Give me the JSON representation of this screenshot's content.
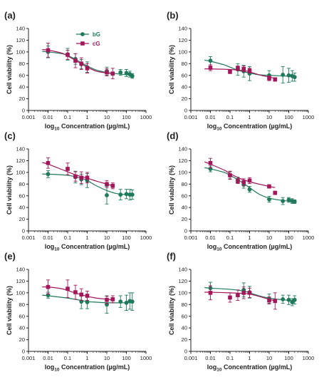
{
  "figure": {
    "series_colors": {
      "bG": "#1f7a5a",
      "cG": "#a3175a"
    },
    "legend": [
      {
        "name": "bG",
        "color": "#1f7a5a",
        "marker": "circle"
      },
      {
        "name": "cG",
        "color": "#a3175a",
        "marker": "square"
      }
    ]
  },
  "chart_data": [
    {
      "panel": "(a)",
      "type": "scatter",
      "xlabel_prefix": "log",
      "xlabel_sub": "10",
      "xlabel_rest": " Concentration (µg/mL)",
      "ylabel": "Cell viability (%)",
      "xscale": "log",
      "xlim": [
        0.001,
        1000
      ],
      "ylim": [
        0,
        140
      ],
      "xticks": [
        "0.001",
        "0.01",
        "0.1",
        "1",
        "10",
        "100",
        "1000"
      ],
      "yticks": [
        "0",
        "20",
        "40",
        "60",
        "80",
        "100",
        "120",
        "140"
      ],
      "legend_position": "top-center",
      "series": [
        {
          "name": "bG",
          "x": [
            0.01,
            0.1,
            0.25,
            0.5,
            1,
            10,
            50,
            100,
            150,
            200
          ],
          "y": [
            100,
            96,
            88,
            79,
            74,
            67,
            65,
            64,
            62,
            59
          ],
          "err": [
            10,
            10,
            9,
            8,
            9,
            7,
            5,
            6,
            5,
            4
          ],
          "fit": [
            [
              0.005,
              101
            ],
            [
              0.01,
              100
            ],
            [
              0.05,
              97
            ],
            [
              0.1,
              94
            ],
            [
              0.3,
              86
            ],
            [
              1,
              76
            ],
            [
              3,
              69
            ],
            [
              10,
              65
            ],
            [
              50,
              62
            ],
            [
              200,
              60
            ]
          ]
        },
        {
          "name": "cG",
          "x": [
            0.01,
            0.1,
            0.25,
            0.5,
            1,
            10,
            20
          ],
          "y": [
            103,
            95,
            85,
            80,
            72,
            65,
            63
          ],
          "err": [
            12,
            8,
            12,
            10,
            8,
            6,
            9
          ],
          "fit": [
            [
              0.005,
              104
            ],
            [
              0.01,
              103
            ],
            [
              0.05,
              98
            ],
            [
              0.1,
              93
            ],
            [
              0.3,
              84
            ],
            [
              1,
              74
            ],
            [
              3,
              67
            ],
            [
              10,
              64
            ],
            [
              20,
              63
            ]
          ]
        }
      ]
    },
    {
      "panel": "(b)",
      "type": "scatter",
      "xlabel_prefix": "log",
      "xlabel_sub": "10",
      "xlabel_rest": " Concentration (µg/mL)",
      "ylabel": "Cell viability (%)",
      "xscale": "log",
      "xlim": [
        0.001,
        1000
      ],
      "ylim": [
        0,
        140
      ],
      "xticks": [
        "0.001",
        "0.01",
        "0.1",
        "1",
        "10",
        "100",
        "1000"
      ],
      "yticks": [
        "0",
        "20",
        "40",
        "60",
        "80",
        "100",
        "120",
        "140"
      ],
      "series": [
        {
          "name": "bG",
          "x": [
            0.01,
            0.25,
            0.5,
            1,
            10,
            50,
            100,
            150,
            200
          ],
          "y": [
            85,
            70,
            67,
            63,
            60,
            61,
            60,
            59,
            57
          ],
          "err": [
            7,
            10,
            10,
            12,
            8,
            14,
            12,
            9,
            7
          ],
          "fit": [
            [
              0.005,
              86
            ],
            [
              0.01,
              84
            ],
            [
              0.05,
              78
            ],
            [
              0.1,
              74
            ],
            [
              0.3,
              68
            ],
            [
              1,
              64
            ],
            [
              3,
              61
            ],
            [
              10,
              60
            ],
            [
              50,
              59
            ],
            [
              200,
              58
            ]
          ]
        },
        {
          "name": "cG",
          "x": [
            0.01,
            0.1,
            0.25,
            0.5,
            1,
            10,
            20
          ],
          "y": [
            73,
            66,
            72,
            71,
            68,
            55,
            53
          ],
          "err": [
            5,
            3,
            4,
            5,
            4,
            4,
            3
          ],
          "fit": [
            [
              0.005,
              71
            ],
            [
              0.01,
              71
            ],
            [
              0.1,
              70
            ],
            [
              0.5,
              68
            ],
            [
              1,
              66
            ],
            [
              3,
              61
            ],
            [
              10,
              57
            ],
            [
              20,
              55
            ]
          ]
        }
      ]
    },
    {
      "panel": "(c)",
      "type": "scatter",
      "xlabel_prefix": "log",
      "xlabel_sub": "10",
      "xlabel_rest": " Concentration (µg/mL)",
      "ylabel": "Cell viability (%)",
      "xscale": "log",
      "xlim": [
        0.001,
        1000
      ],
      "ylim": [
        0,
        140
      ],
      "xticks": [
        "0.001",
        "0.01",
        "0.1",
        "1",
        "10",
        "100",
        "1000"
      ],
      "yticks": [
        "0",
        "20",
        "40",
        "60",
        "80",
        "100",
        "120",
        "140"
      ],
      "series": [
        {
          "name": "bG",
          "x": [
            0.01,
            0.25,
            0.5,
            1,
            10,
            50,
            100,
            150,
            200
          ],
          "y": [
            97,
            92,
            88,
            86,
            61,
            62,
            63,
            62,
            62
          ],
          "err": [
            6,
            10,
            9,
            12,
            15,
            9,
            8,
            9,
            8
          ],
          "fit": [
            [
              0.005,
              97
            ],
            [
              0.01,
              97
            ],
            [
              0.1,
              95
            ],
            [
              0.5,
              90
            ],
            [
              1,
              86
            ],
            [
              3,
              77
            ],
            [
              10,
              69
            ],
            [
              30,
              64
            ],
            [
              100,
              62
            ],
            [
              200,
              62
            ]
          ]
        },
        {
          "name": "cG",
          "x": [
            0.01,
            0.1,
            0.25,
            0.5,
            1,
            10,
            20
          ],
          "y": [
            116,
            106,
            93,
            91,
            91,
            80,
            77
          ],
          "err": [
            9,
            10,
            8,
            10,
            9,
            6,
            5
          ],
          "fit": [
            [
              0.005,
              117
            ],
            [
              0.01,
              114
            ],
            [
              0.05,
              105
            ],
            [
              0.1,
              101
            ],
            [
              0.3,
              95
            ],
            [
              1,
              90
            ],
            [
              3,
              85
            ],
            [
              10,
              80
            ],
            [
              20,
              77
            ]
          ]
        }
      ]
    },
    {
      "panel": "(d)",
      "type": "scatter",
      "xlabel_prefix": "log",
      "xlabel_sub": "10",
      "xlabel_rest": " Concentration (µg/mL)",
      "ylabel": "Cell viability (%)",
      "xscale": "log",
      "xlim": [
        0.001,
        1000
      ],
      "ylim": [
        0,
        140
      ],
      "xticks": [
        "0.001",
        "0.01",
        "0.1",
        "1",
        "10",
        "100",
        "1000"
      ],
      "yticks": [
        "0",
        "20",
        "40",
        "60",
        "80",
        "100",
        "120",
        "140"
      ],
      "series": [
        {
          "name": "bG",
          "x": [
            0.01,
            0.1,
            0.25,
            0.5,
            1,
            10,
            50,
            100,
            150,
            200
          ],
          "y": [
            106,
            95,
            87,
            79,
            71,
            54,
            51,
            53,
            51,
            50
          ],
          "err": [
            5,
            6,
            5,
            6,
            5,
            5,
            6,
            4,
            4,
            3
          ],
          "fit": [
            [
              0.005,
              108
            ],
            [
              0.01,
              106
            ],
            [
              0.05,
              100
            ],
            [
              0.1,
              95
            ],
            [
              0.3,
              86
            ],
            [
              1,
              74
            ],
            [
              3,
              63
            ],
            [
              10,
              56
            ],
            [
              50,
              52
            ],
            [
              200,
              50
            ]
          ]
        },
        {
          "name": "cG",
          "x": [
            0.01,
            0.1,
            0.25,
            0.5,
            1,
            10,
            20
          ],
          "y": [
            116,
            95,
            85,
            83,
            86,
            76,
            65
          ],
          "err": [
            8,
            7,
            4,
            6,
            5,
            3,
            3
          ],
          "fit": [
            [
              0.005,
              118
            ],
            [
              0.01,
              114
            ],
            [
              0.05,
              104
            ],
            [
              0.1,
              98
            ],
            [
              0.3,
              90
            ],
            [
              1,
              84
            ],
            [
              3,
              80
            ],
            [
              10,
              76
            ],
            [
              20,
              74
            ]
          ]
        }
      ]
    },
    {
      "panel": "(e)",
      "type": "scatter",
      "xlabel_prefix": "log",
      "xlabel_sub": "10",
      "xlabel_rest": " Concentration (µg/mL)",
      "ylabel": "Cell viability (%)",
      "xscale": "log",
      "xlim": [
        0.001,
        1000
      ],
      "ylim": [
        0,
        140
      ],
      "xticks": [
        "0.001",
        "0.01",
        "0.1",
        "1",
        "10",
        "100",
        "1000"
      ],
      "yticks": [
        "0",
        "20",
        "40",
        "60",
        "80",
        "100",
        "120",
        "140"
      ],
      "series": [
        {
          "name": "bG",
          "x": [
            0.01,
            0.5,
            1,
            10,
            50,
            100,
            150,
            200
          ],
          "y": [
            96,
            85,
            84,
            80,
            85,
            83,
            86,
            85
          ],
          "err": [
            5,
            12,
            11,
            15,
            10,
            13,
            14,
            15
          ],
          "fit": [
            [
              0.005,
              96
            ],
            [
              0.01,
              95
            ],
            [
              0.1,
              91
            ],
            [
              0.5,
              87
            ],
            [
              1,
              85
            ],
            [
              3,
              84
            ],
            [
              10,
              83
            ],
            [
              50,
              83
            ],
            [
              200,
              83
            ]
          ]
        },
        {
          "name": "cG",
          "x": [
            0.01,
            0.1,
            0.25,
            0.5,
            1,
            10,
            20
          ],
          "y": [
            110,
            107,
            101,
            97,
            95,
            88,
            89
          ],
          "err": [
            12,
            15,
            12,
            10,
            8,
            6,
            6
          ],
          "fit": [
            [
              0.005,
              110
            ],
            [
              0.01,
              110
            ],
            [
              0.05,
              107
            ],
            [
              0.1,
              104
            ],
            [
              0.3,
              99
            ],
            [
              1,
              94
            ],
            [
              3,
              91
            ],
            [
              10,
              89
            ],
            [
              20,
              88
            ]
          ]
        }
      ]
    },
    {
      "panel": "(f)",
      "type": "scatter",
      "xlabel_prefix": "log",
      "xlabel_sub": "10",
      "xlabel_rest": " Concentration (µg/mL)",
      "ylabel": "Cell viability (%)",
      "xscale": "log",
      "xlim": [
        0.001,
        1000
      ],
      "ylim": [
        0,
        140
      ],
      "xticks": [
        "0.001",
        "0.01",
        "0.1",
        "1",
        "10",
        "100",
        "1000"
      ],
      "yticks": [
        "0",
        "20",
        "40",
        "60",
        "80",
        "100",
        "120",
        "140"
      ],
      "series": [
        {
          "name": "bG",
          "x": [
            0.01,
            0.5,
            1,
            10,
            50,
            100,
            150,
            200
          ],
          "y": [
            108,
            105,
            101,
            90,
            89,
            88,
            84,
            88
          ],
          "err": [
            10,
            12,
            10,
            8,
            7,
            8,
            6,
            7
          ],
          "fit": [
            [
              0.005,
              109
            ],
            [
              0.01,
              108
            ],
            [
              0.1,
              106
            ],
            [
              0.5,
              103
            ],
            [
              1,
              100
            ],
            [
              3,
              95
            ],
            [
              10,
              91
            ],
            [
              50,
              88
            ],
            [
              200,
              87
            ]
          ]
        },
        {
          "name": "cG",
          "x": [
            0.01,
            0.1,
            0.25,
            0.5,
            1,
            10,
            20
          ],
          "y": [
            100,
            92,
            96,
            100,
            100,
            87,
            86
          ],
          "err": [
            12,
            8,
            9,
            10,
            8,
            6,
            14
          ],
          "fit": [
            [
              0.005,
              101
            ],
            [
              0.01,
              101
            ],
            [
              0.1,
              100
            ],
            [
              0.5,
              99
            ],
            [
              1,
              98
            ],
            [
              3,
              94
            ],
            [
              10,
              89
            ],
            [
              20,
              86
            ]
          ]
        }
      ]
    }
  ]
}
